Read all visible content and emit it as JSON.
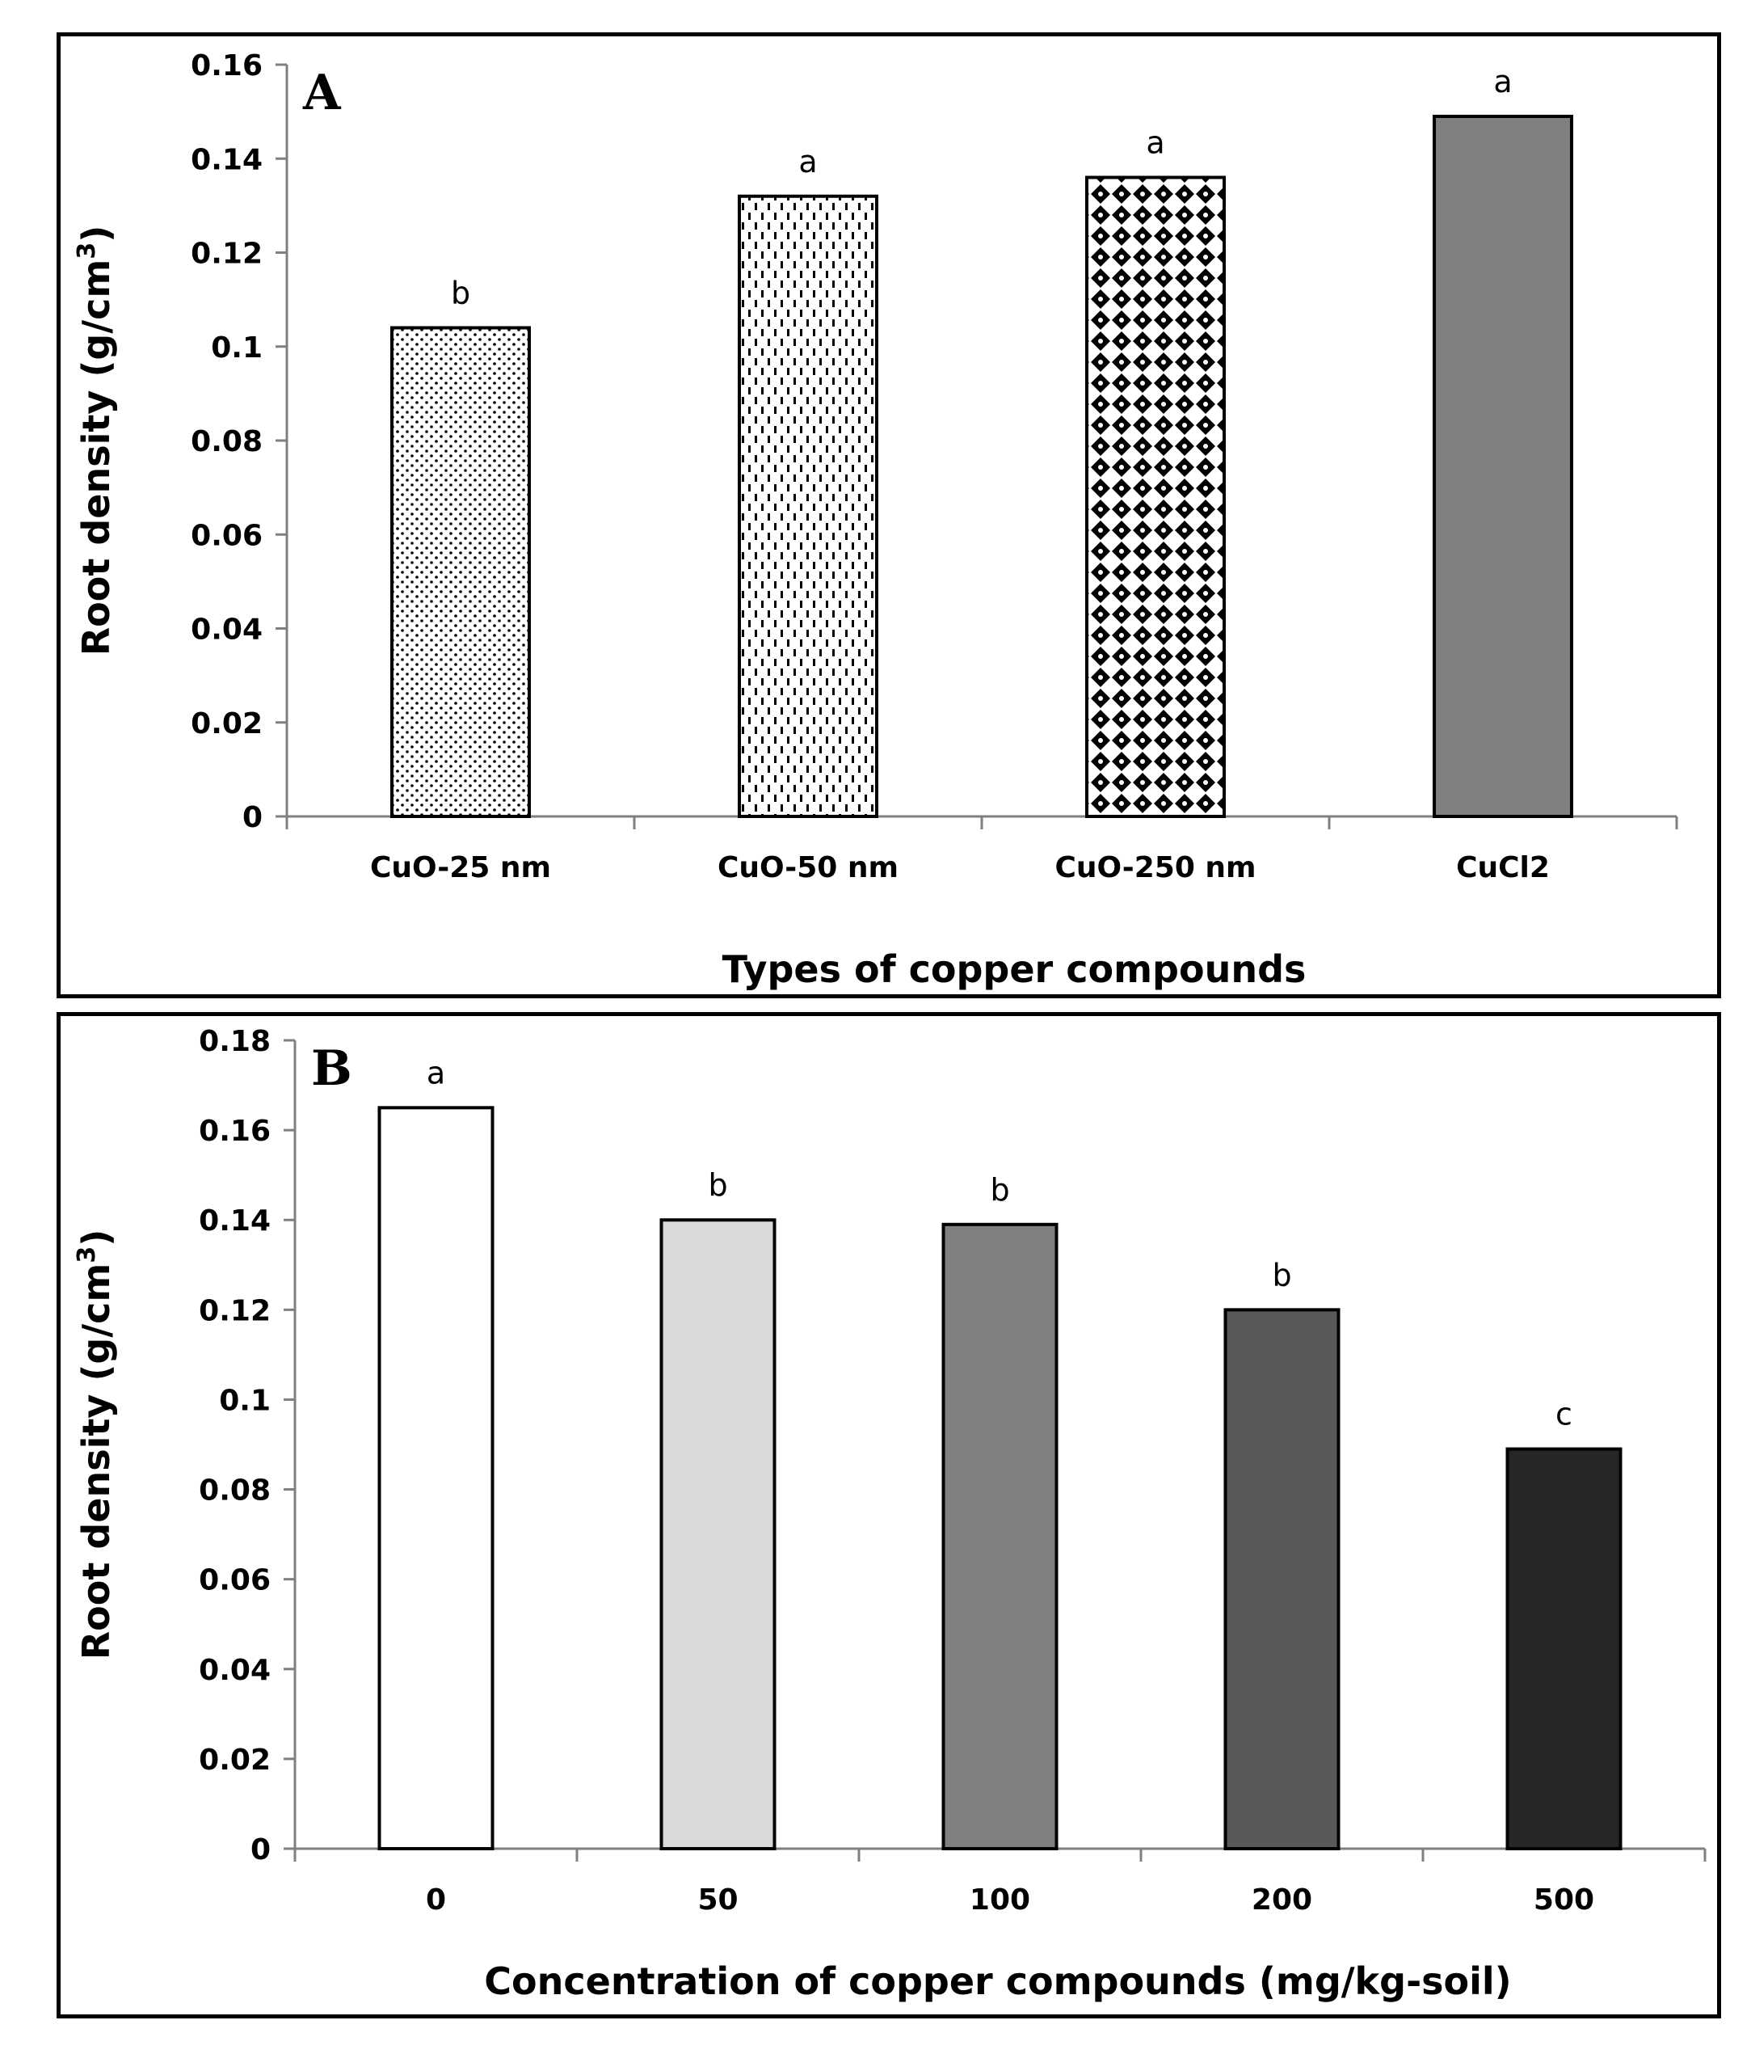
{
  "chart_data": [
    {
      "panel": "A",
      "type": "bar",
      "xlabel": "Types of copper compounds",
      "ylabel": "Root density (g/cm",
      "ylabel_sup": "3",
      "ylabel_close": ")",
      "ylim": [
        0,
        0.16
      ],
      "yticks": [
        "0",
        "0.02",
        "0.04",
        "0.06",
        "0.08",
        "0.1",
        "0.12",
        "0.14",
        "0.16"
      ],
      "categories": [
        "CuO-25 nm",
        "CuO-50 nm",
        "CuO-250 nm",
        "CuCl2"
      ],
      "values": [
        0.104,
        0.132,
        0.136,
        0.149
      ],
      "significance": [
        "b",
        "a",
        "a",
        "a"
      ],
      "fills": [
        "dots",
        "dashes",
        "diamonds",
        "#808080"
      ]
    },
    {
      "panel": "B",
      "type": "bar",
      "xlabel": "Concentration of copper compounds (mg/kg-soil)",
      "ylabel": "Root density (g/cm",
      "ylabel_sup": "3",
      "ylabel_close": ")",
      "ylim": [
        0,
        0.18
      ],
      "yticks": [
        "0",
        "0.02",
        "0.04",
        "0.06",
        "0.08",
        "0.1",
        "0.12",
        "0.14",
        "0.16",
        "0.18"
      ],
      "categories": [
        "0",
        "50",
        "100",
        "200",
        "500"
      ],
      "values": [
        0.165,
        0.14,
        0.139,
        0.12,
        0.089
      ],
      "significance": [
        "a",
        "b",
        "b",
        "b",
        "c"
      ],
      "fills": [
        "#ffffff",
        "#d9d9d9",
        "#808080",
        "#595959",
        "#262626"
      ]
    }
  ]
}
